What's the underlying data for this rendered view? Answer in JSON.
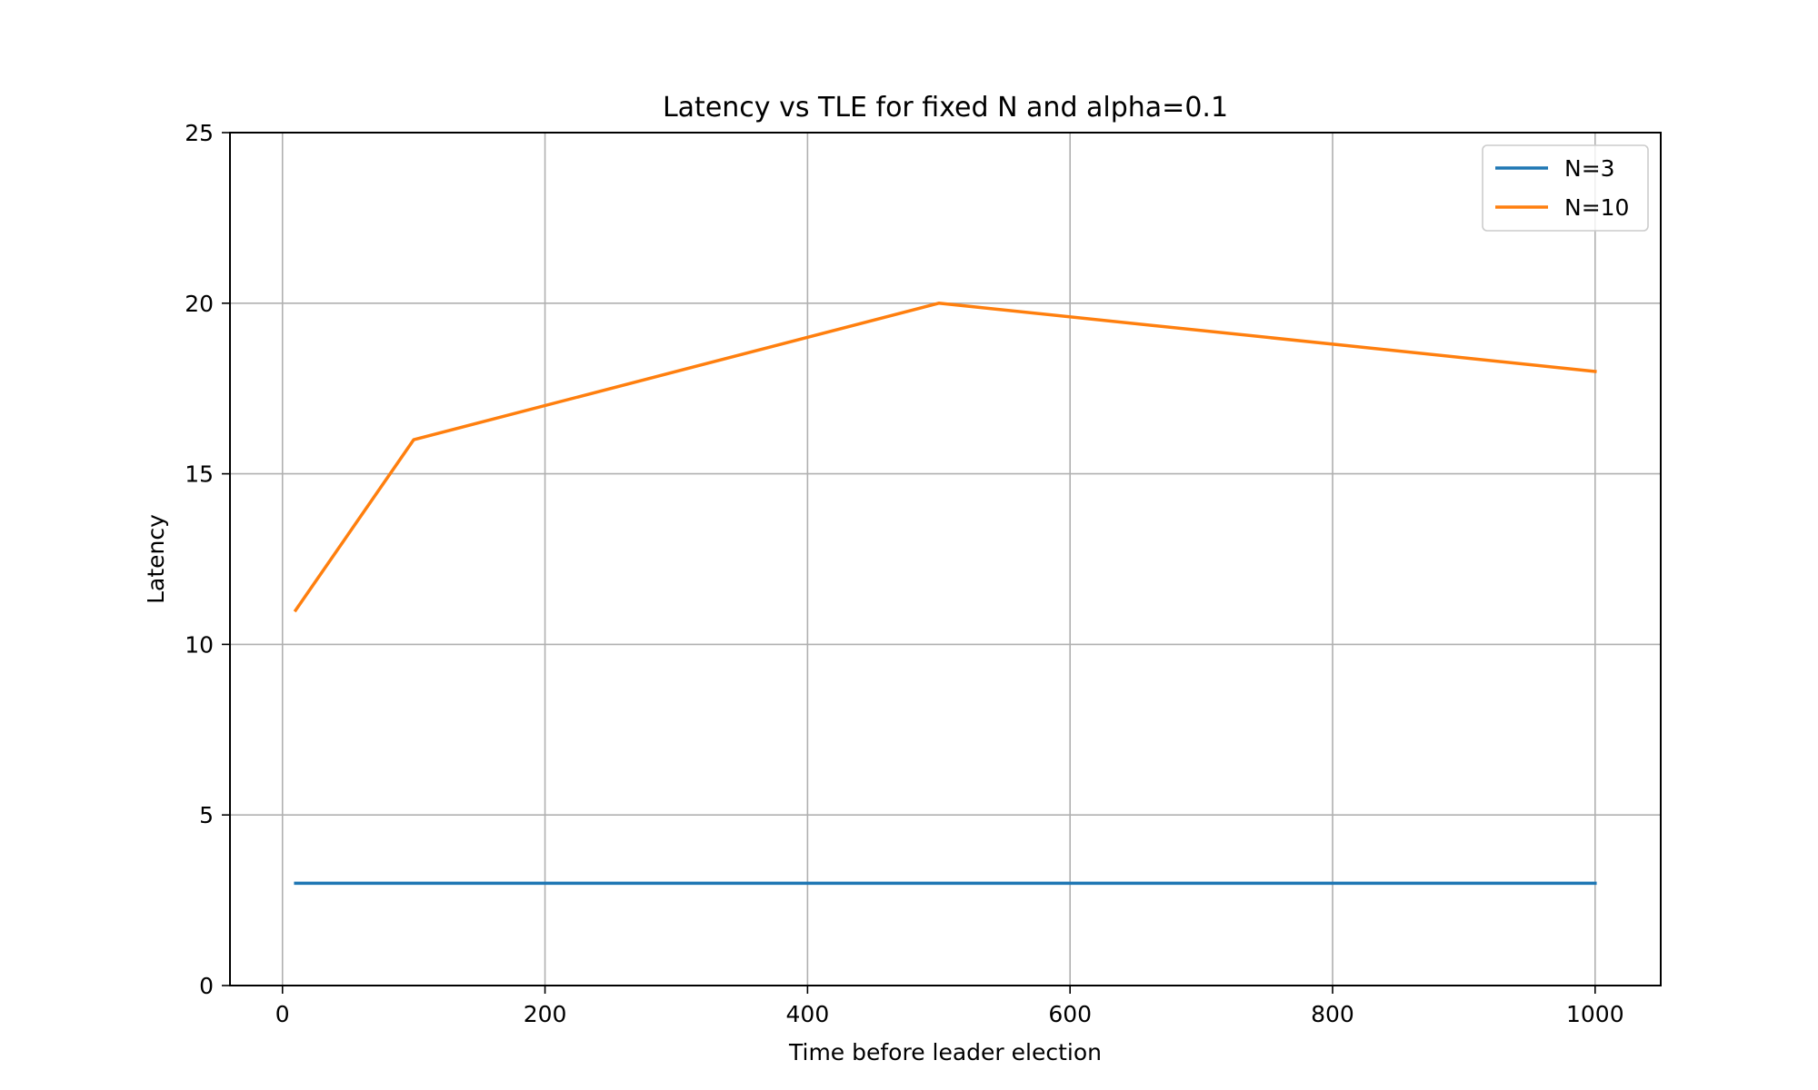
{
  "chart_data": {
    "type": "line",
    "title": "Latency vs TLE for fixed N and alpha=0.1",
    "xlabel": "Time before leader election",
    "ylabel": "Latency",
    "xlim": [
      -40,
      1050
    ],
    "ylim": [
      0,
      25
    ],
    "xticks": [
      0,
      200,
      400,
      600,
      800,
      1000
    ],
    "yticks": [
      0,
      5,
      10,
      15,
      20,
      25
    ],
    "x_tick_labels": [
      "0",
      "200",
      "400",
      "600",
      "800",
      "1000"
    ],
    "y_tick_labels": [
      "0",
      "5",
      "10",
      "15",
      "20",
      "25"
    ],
    "grid": true,
    "legend_position": "top-right",
    "series": [
      {
        "name": "N=3",
        "color": "#1f77b4",
        "x": [
          10,
          100,
          500,
          1000
        ],
        "y": [
          3,
          3,
          3,
          3
        ]
      },
      {
        "name": "N=10",
        "color": "#ff7f0e",
        "x": [
          10,
          100,
          500,
          1000
        ],
        "y": [
          11,
          16,
          20,
          18
        ]
      }
    ]
  }
}
